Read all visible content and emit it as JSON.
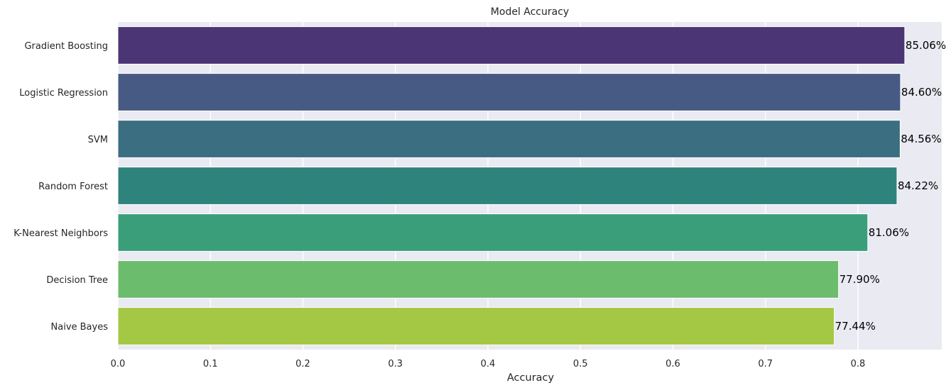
{
  "chart_data": {
    "type": "bar",
    "orientation": "horizontal",
    "title": "Model Accuracy",
    "xlabel": "Accuracy",
    "ylabel": "",
    "xlim": [
      0,
      0.89
    ],
    "x_ticks": [
      0.0,
      0.1,
      0.2,
      0.3,
      0.4,
      0.5,
      0.6,
      0.7,
      0.8
    ],
    "x_tick_labels": [
      "0.0",
      "0.1",
      "0.2",
      "0.3",
      "0.4",
      "0.5",
      "0.6",
      "0.7",
      "0.8"
    ],
    "categories": [
      "Gradient Boosting",
      "Logistic Regression",
      "SVM",
      "Random Forest",
      "K-Nearest Neighbors",
      "Decision Tree",
      "Naive Bayes"
    ],
    "values": [
      0.8506,
      0.846,
      0.8456,
      0.8422,
      0.8106,
      0.779,
      0.7744
    ],
    "data_labels": [
      "85.06%",
      "84.60%",
      "84.56%",
      "84.22%",
      "81.06%",
      "77.90%",
      "77.44%"
    ],
    "colors": [
      "#4b3574",
      "#465a84",
      "#3a6e80",
      "#2e837c",
      "#3b9e7a",
      "#6cbc6d",
      "#a4c844"
    ],
    "background": "#eaeaf2",
    "grid": true
  }
}
